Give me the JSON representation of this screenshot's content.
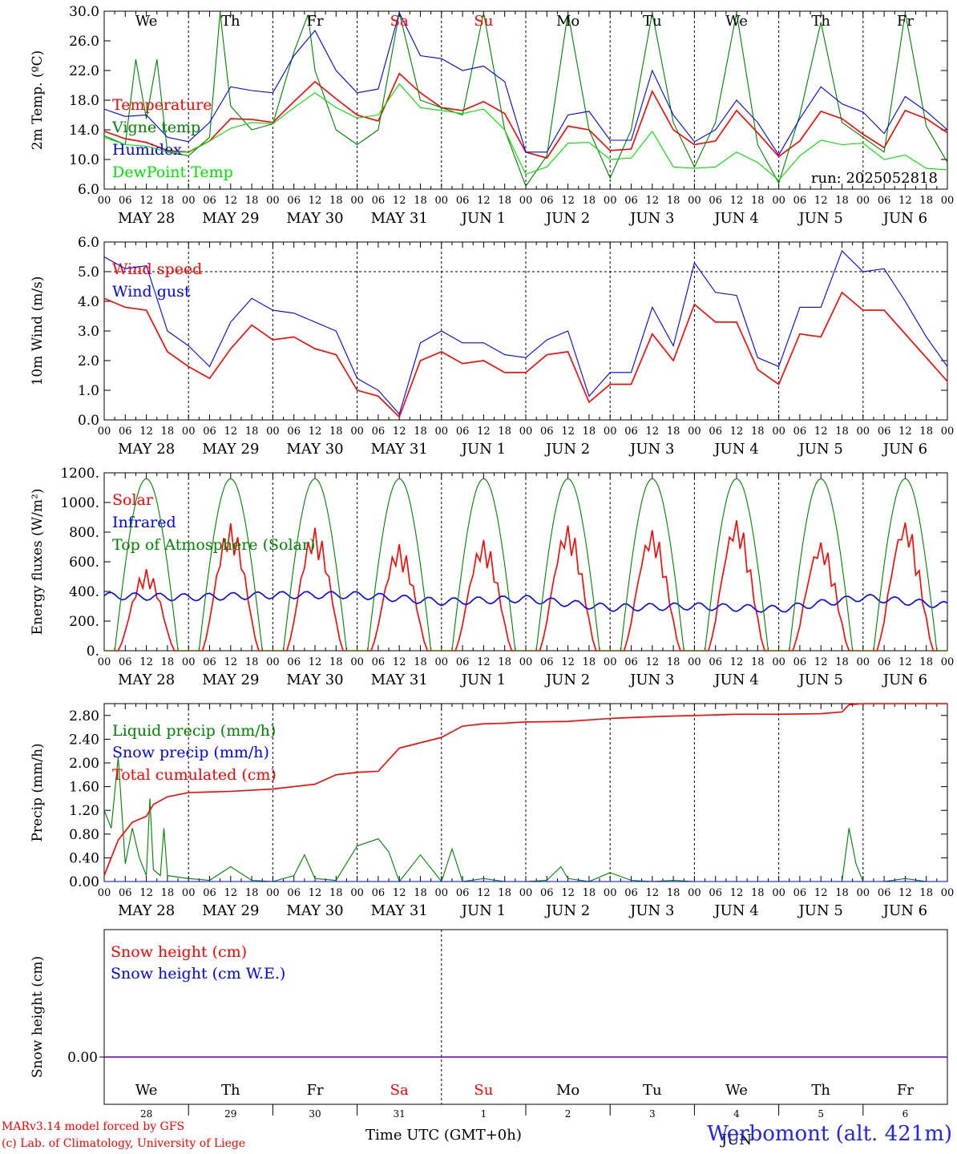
{
  "colors": {
    "red": "#ff0000",
    "green": "#008000",
    "blue": "#0000ff",
    "lightgreen": "#00e000",
    "weekend": "#ff0000"
  },
  "run_label": "run: 2025052818",
  "days": [
    {
      "dow": "We",
      "label": "MAY 28",
      "num": "28",
      "weekend": false
    },
    {
      "dow": "Th",
      "label": "MAY 29",
      "num": "29",
      "weekend": false
    },
    {
      "dow": "Fr",
      "label": "MAY 30",
      "num": "30",
      "weekend": false
    },
    {
      "dow": "Sa",
      "label": "MAY 31",
      "num": "31",
      "weekend": true
    },
    {
      "dow": "Su",
      "label": "JUN  1",
      "num": "1",
      "weekend": true
    },
    {
      "dow": "Mo",
      "label": "JUN  2",
      "num": "2",
      "weekend": false
    },
    {
      "dow": "Tu",
      "label": "JUN  3",
      "num": "3",
      "weekend": false
    },
    {
      "dow": "We",
      "label": "JUN  4",
      "num": "4",
      "weekend": false
    },
    {
      "dow": "Th",
      "label": "JUN  5",
      "num": "5",
      "weekend": false
    },
    {
      "dow": "Fr",
      "label": "JUN  6",
      "num": "6",
      "weekend": false
    }
  ],
  "hour_labels": [
    "00",
    "06",
    "12",
    "18"
  ],
  "final_hour_label": "00",
  "month_label": "JUN",
  "footer": {
    "credit_line1": "MARv3.14 model forced by GFS",
    "credit_line2": "(c) Lab. of Climatology, University of Liege",
    "x_title": "Time UTC (GMT+0h)",
    "location": "Werbomont (alt. 421m)"
  },
  "chart_data": [
    {
      "type": "line",
      "id": "temp",
      "ylabel": "2m Temp. (ºC)",
      "ylim": [
        6,
        30
      ],
      "yticks": [
        "6.0",
        "10.0",
        "14.0",
        "18.0",
        "22.0",
        "26.0",
        "30.0"
      ],
      "x_unit": "hours since 2025-05-28 00 UTC",
      "series": [
        {
          "name": "Temperature",
          "color": "red",
          "x": [
            0,
            6,
            12,
            18,
            24,
            30,
            36,
            42,
            48,
            54,
            60,
            66,
            72,
            78,
            84,
            90,
            96,
            102,
            108,
            114,
            120,
            126,
            132,
            138,
            144,
            150,
            156,
            162,
            168,
            174,
            180,
            186,
            192,
            198,
            204,
            210,
            216,
            222,
            228,
            234,
            240
          ],
          "y": [
            13.8,
            12.8,
            12.3,
            11.2,
            11.0,
            12.5,
            15.5,
            15.4,
            15.0,
            17.8,
            20.5,
            18.2,
            16.0,
            15.2,
            21.6,
            19.0,
            17.0,
            16.6,
            17.8,
            16.2,
            11.0,
            10.2,
            14.5,
            14.0,
            11.2,
            11.4,
            19.2,
            14.0,
            12.0,
            12.5,
            16.6,
            13.6,
            10.4,
            12.5,
            16.5,
            15.5,
            13.4,
            11.6,
            16.6,
            15.5,
            13.6
          ]
        },
        {
          "name": "Vigne temp",
          "color": "green",
          "x": [
            0,
            6,
            9,
            12,
            15,
            18,
            24,
            30,
            33,
            36,
            42,
            48,
            54,
            58,
            60,
            66,
            72,
            78,
            84,
            90,
            96,
            102,
            108,
            114,
            120,
            126,
            132,
            138,
            144,
            150,
            156,
            162,
            168,
            174,
            180,
            186,
            192,
            198,
            204,
            210,
            216,
            222,
            228,
            234,
            240
          ],
          "y": [
            13.2,
            12.0,
            23.5,
            15.5,
            23.5,
            11.0,
            10.5,
            13.0,
            29.8,
            17.2,
            14.0,
            14.8,
            24.5,
            29.5,
            22.0,
            14.0,
            12.0,
            14.0,
            29.8,
            18.0,
            17.0,
            16.0,
            29.8,
            14.0,
            6.4,
            10.5,
            29.8,
            14.0,
            7.5,
            14.0,
            29.8,
            15.0,
            9.0,
            15.0,
            29.8,
            12.0,
            6.8,
            16.0,
            28.5,
            15.0,
            13.0,
            11.0,
            29.8,
            14.5,
            9.6
          ]
        },
        {
          "name": "Humidex",
          "color": "blue",
          "x": [
            0,
            6,
            12,
            18,
            24,
            30,
            36,
            42,
            48,
            54,
            60,
            66,
            72,
            78,
            84,
            90,
            96,
            102,
            108,
            114,
            120,
            126,
            132,
            138,
            144,
            150,
            156,
            162,
            168,
            174,
            180,
            186,
            192,
            198,
            204,
            210,
            216,
            222,
            228,
            234,
            240
          ],
          "y": [
            16.8,
            15.8,
            16.0,
            13.0,
            12.4,
            15.0,
            19.8,
            19.3,
            19.0,
            24.0,
            27.4,
            22.0,
            19.0,
            19.5,
            29.8,
            24.0,
            23.6,
            22.0,
            22.6,
            20.5,
            11.0,
            11.0,
            16.0,
            16.5,
            12.6,
            12.6,
            22.0,
            16.0,
            12.4,
            14.0,
            18.0,
            15.0,
            10.6,
            15.5,
            19.8,
            17.5,
            16.4,
            13.5,
            18.5,
            16.5,
            14.0
          ]
        },
        {
          "name": "DewPoint Temp",
          "color": "lightgreen",
          "x": [
            0,
            6,
            12,
            18,
            24,
            30,
            36,
            42,
            48,
            54,
            60,
            66,
            72,
            78,
            84,
            90,
            96,
            102,
            108,
            114,
            120,
            126,
            132,
            138,
            144,
            150,
            156,
            162,
            168,
            174,
            180,
            186,
            192,
            198,
            204,
            210,
            216,
            222,
            228,
            234,
            240
          ],
          "y": [
            13.0,
            12.0,
            11.8,
            11.0,
            11.0,
            12.5,
            14.2,
            15.0,
            14.8,
            17.0,
            19.0,
            17.0,
            15.6,
            16.0,
            20.2,
            17.0,
            16.6,
            16.2,
            16.8,
            14.0,
            8.0,
            9.0,
            12.2,
            12.3,
            10.0,
            10.2,
            13.8,
            9.0,
            8.8,
            9.0,
            11.0,
            9.6,
            7.2,
            10.5,
            12.6,
            12.0,
            12.2,
            10.0,
            10.6,
            8.8,
            8.6
          ]
        }
      ]
    },
    {
      "type": "line",
      "id": "wind",
      "ylabel": "10m Wind (m/s)",
      "ylim": [
        0,
        6
      ],
      "yticks": [
        "0.0",
        "1.0",
        "2.0",
        "3.0",
        "4.0",
        "5.0",
        "6.0"
      ],
      "hline": 5.0,
      "series": [
        {
          "name": "Wind speed",
          "color": "red",
          "x": [
            0,
            6,
            12,
            18,
            24,
            30,
            36,
            42,
            48,
            54,
            60,
            66,
            72,
            78,
            84,
            90,
            96,
            102,
            108,
            114,
            120,
            126,
            132,
            138,
            144,
            150,
            156,
            162,
            168,
            174,
            180,
            186,
            192,
            198,
            204,
            210,
            216,
            222,
            228,
            234,
            240
          ],
          "y": [
            4.1,
            3.8,
            3.7,
            2.3,
            1.8,
            1.4,
            2.4,
            3.2,
            2.7,
            2.8,
            2.4,
            2.2,
            1.0,
            0.8,
            0.1,
            2.0,
            2.3,
            1.9,
            2.0,
            1.6,
            1.6,
            2.2,
            2.3,
            0.6,
            1.2,
            1.2,
            2.9,
            2.0,
            3.9,
            3.3,
            3.3,
            1.7,
            1.2,
            2.9,
            2.8,
            4.3,
            3.7,
            3.7,
            2.9,
            2.1,
            1.3
          ]
        },
        {
          "name": "Wind gust",
          "color": "blue",
          "x": [
            0,
            6,
            12,
            18,
            24,
            30,
            36,
            42,
            48,
            54,
            60,
            66,
            72,
            78,
            84,
            90,
            96,
            102,
            108,
            114,
            120,
            126,
            132,
            138,
            144,
            150,
            156,
            162,
            168,
            174,
            180,
            186,
            192,
            198,
            204,
            210,
            216,
            222,
            228,
            234,
            240
          ],
          "y": [
            5.5,
            5.1,
            5.2,
            3.0,
            2.5,
            1.8,
            3.3,
            4.1,
            3.7,
            3.6,
            3.3,
            3.0,
            1.4,
            1.0,
            0.2,
            2.6,
            3.0,
            2.6,
            2.6,
            2.2,
            2.1,
            2.7,
            3.0,
            0.8,
            1.6,
            1.6,
            3.8,
            2.5,
            5.3,
            4.3,
            4.2,
            2.1,
            1.8,
            3.8,
            3.8,
            5.7,
            5.0,
            5.1,
            4.0,
            2.8,
            1.8
          ]
        }
      ]
    },
    {
      "type": "line",
      "id": "energy",
      "ylabel": "Energy fluxes (W/m²)",
      "ylim": [
        0,
        1200
      ],
      "yticks": [
        "0.",
        "200.",
        "400.",
        "600.",
        "800.",
        "1000.",
        "1200."
      ],
      "series": [
        {
          "name": "Solar",
          "color": "red",
          "day_peaks": [
            550,
            860,
            830,
            720,
            750,
            850,
            820,
            890,
            740,
            880
          ]
        },
        {
          "name": "Infrared",
          "color": "blue",
          "x": [
            0,
            24,
            48,
            72,
            96,
            120,
            144,
            168,
            192,
            216,
            240
          ],
          "y": [
            370,
            360,
            375,
            375,
            330,
            350,
            290,
            300,
            280,
            360,
            305
          ]
        },
        {
          "name": "Top of Atmosphere (Solar)",
          "color": "green",
          "peak": 1160
        }
      ]
    },
    {
      "type": "line",
      "id": "precip",
      "ylabel": "Precip (mm/h)",
      "ylim": [
        0,
        3.0
      ],
      "yticks": [
        "0.00",
        "0.40",
        "0.80",
        "1.20",
        "1.60",
        "2.00",
        "2.40",
        "2.80"
      ],
      "series": [
        {
          "name": "Liquid precip (mm/h)",
          "color": "green",
          "x": [
            0,
            2,
            4,
            6,
            8,
            10,
            12,
            13,
            14,
            16,
            17,
            18,
            24,
            30,
            36,
            42,
            48,
            54,
            57,
            60,
            66,
            72,
            78,
            81,
            84,
            90,
            96,
            99,
            102,
            108,
            114,
            120,
            126,
            130,
            132,
            138,
            144,
            150,
            156,
            162,
            168,
            174,
            180,
            186,
            192,
            198,
            204,
            210,
            212,
            214,
            216,
            222,
            228,
            234,
            240
          ],
          "y": [
            1.2,
            0.9,
            2.1,
            0.3,
            0.9,
            0.4,
            0.1,
            1.4,
            0.2,
            0.1,
            0.9,
            0.1,
            0.05,
            0.02,
            0.25,
            0.02,
            0.0,
            0.1,
            0.45,
            0.05,
            0.02,
            0.6,
            0.72,
            0.5,
            0.0,
            0.45,
            0.0,
            0.55,
            0.0,
            0.05,
            0.0,
            0.0,
            0.02,
            0.25,
            0.05,
            0.0,
            0.15,
            0.02,
            0.0,
            0.02,
            0.0,
            0.0,
            0.0,
            0.0,
            0.0,
            0.0,
            0.0,
            0.0,
            0.9,
            0.3,
            0.0,
            0.0,
            0.05,
            0.0,
            0.0
          ]
        },
        {
          "name": "Snow precip (mm/h)",
          "color": "blue",
          "x": [
            0,
            240
          ],
          "y": [
            0,
            0
          ]
        },
        {
          "name": "Total cumulated (cm)",
          "color": "red",
          "x": [
            0,
            4,
            8,
            12,
            14,
            18,
            24,
            36,
            48,
            54,
            60,
            66,
            72,
            78,
            84,
            90,
            96,
            102,
            108,
            114,
            120,
            132,
            144,
            156,
            168,
            180,
            192,
            204,
            210,
            212,
            216,
            228,
            240
          ],
          "y": [
            0.1,
            0.7,
            1.0,
            1.1,
            1.3,
            1.43,
            1.5,
            1.52,
            1.56,
            1.6,
            1.64,
            1.8,
            1.84,
            1.86,
            2.25,
            2.34,
            2.43,
            2.62,
            2.66,
            2.67,
            2.69,
            2.7,
            2.75,
            2.78,
            2.8,
            2.82,
            2.82,
            2.83,
            2.86,
            2.98,
            3.0,
            3.0,
            3.0
          ]
        }
      ]
    },
    {
      "type": "line",
      "id": "snow",
      "ylabel": "Snow height (cm)",
      "yticks": [
        "0.00"
      ],
      "series": [
        {
          "name": "Snow height (cm)",
          "color": "red",
          "x": [
            0,
            240
          ],
          "y": [
            0,
            0
          ]
        },
        {
          "name": "Snow height (cm W.E.)",
          "color": "blue",
          "x": [
            0,
            240
          ],
          "y": [
            0,
            0
          ]
        }
      ]
    }
  ]
}
